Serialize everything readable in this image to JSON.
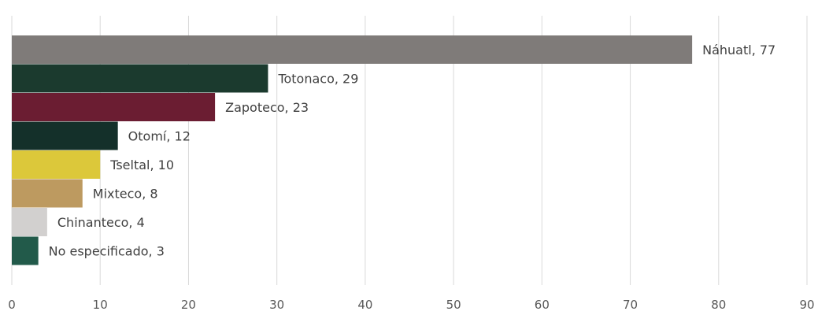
{
  "chart_data": {
    "type": "bar",
    "orientation": "horizontal",
    "categories": [
      "Náhuatl",
      "Totonaco",
      "Zapoteco",
      "Otomí",
      "Tseltal",
      "Mixteco",
      "Chinanteco",
      "No especificado"
    ],
    "values": [
      77,
      29,
      23,
      12,
      10,
      8,
      4,
      3
    ],
    "data_labels": [
      "Náhuatl, 77",
      "Totonaco, 29",
      "Zapoteco, 23",
      "Otomí, 12",
      "Tseltal, 10",
      "Mixteco, 8",
      "Chinanteco, 4",
      "No especificado, 3"
    ],
    "colors": [
      "#7f7b79",
      "#1b3a2e",
      "#6b1d32",
      "#14302a",
      "#dcc83a",
      "#bd9a60",
      "#d2d0cf",
      "#225a4a"
    ],
    "x_ticks": [
      "0",
      "10",
      "20",
      "30",
      "40",
      "50",
      "60",
      "70",
      "80",
      "90"
    ],
    "xlim": [
      0,
      90
    ],
    "grid": true,
    "title": "",
    "xlabel": "",
    "ylabel": ""
  }
}
